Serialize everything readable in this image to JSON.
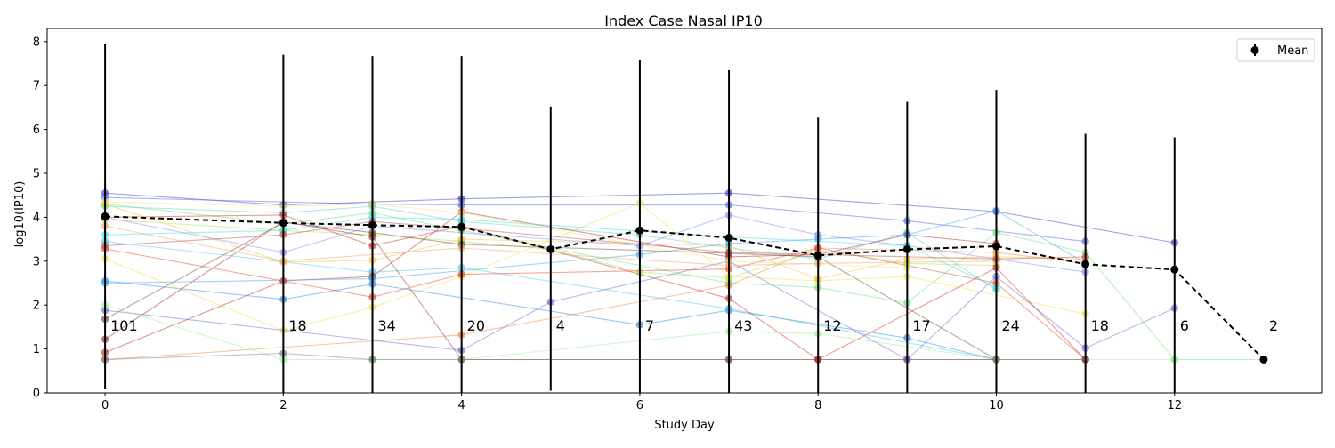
{
  "chart_data": {
    "type": "line",
    "title": "Index Case Nasal IP10",
    "xlabel": "Study Day",
    "ylabel": "log10(IP10)",
    "xlim": [
      -0.65,
      13.65
    ],
    "ylim": [
      0,
      8.3
    ],
    "xticks": [
      0,
      2,
      4,
      6,
      8,
      10,
      12
    ],
    "yticks": [
      0,
      1,
      2,
      3,
      4,
      5,
      6,
      7,
      8
    ],
    "legend": {
      "placement": "top-right",
      "entries": [
        "Mean"
      ]
    },
    "mean_series": {
      "name": "Mean",
      "color": "#000000",
      "points": [
        {
          "x": 0,
          "y": 4.02,
          "ylow": 0.08,
          "yhigh": 7.95,
          "n": "101"
        },
        {
          "x": 2,
          "y": 3.87,
          "ylow": 0.0,
          "yhigh": 7.7,
          "n": "18"
        },
        {
          "x": 3,
          "y": 3.82,
          "ylow": 0.0,
          "yhigh": 7.67,
          "n": "34"
        },
        {
          "x": 4,
          "y": 3.78,
          "ylow": 0.0,
          "yhigh": 7.67,
          "n": "20"
        },
        {
          "x": 5,
          "y": 3.27,
          "ylow": 0.05,
          "yhigh": 6.52,
          "n": "4"
        },
        {
          "x": 6,
          "y": 3.7,
          "ylow": 0.0,
          "yhigh": 7.58,
          "n": "7"
        },
        {
          "x": 7,
          "y": 3.53,
          "ylow": 0.0,
          "yhigh": 7.35,
          "n": "43"
        },
        {
          "x": 8,
          "y": 3.13,
          "ylow": 0.0,
          "yhigh": 6.27,
          "n": "12"
        },
        {
          "x": 9,
          "y": 3.27,
          "ylow": 0.0,
          "yhigh": 6.63,
          "n": "17"
        },
        {
          "x": 10,
          "y": 3.34,
          "ylow": 0.0,
          "yhigh": 6.9,
          "n": "24"
        },
        {
          "x": 11,
          "y": 2.93,
          "ylow": 0.0,
          "yhigh": 5.9,
          "n": "18"
        },
        {
          "x": 12,
          "y": 2.81,
          "ylow": 0.0,
          "yhigh": 5.82,
          "n": "6"
        },
        {
          "x": 13,
          "y": 0.76,
          "ylow": 0.76,
          "yhigh": 0.76,
          "n": "2"
        }
      ]
    },
    "subject_series": [
      {
        "color": "#3030c8",
        "points": [
          [
            0,
            4.55
          ],
          [
            2,
            4.28
          ],
          [
            4,
            4.42
          ],
          [
            7,
            4.55
          ],
          [
            10,
            4.13
          ],
          [
            12,
            3.42
          ]
        ]
      },
      {
        "color": "#4060e0",
        "points": [
          [
            0,
            4.45
          ],
          [
            3,
            4.3
          ],
          [
            4,
            4.28
          ],
          [
            7,
            4.28
          ],
          [
            9,
            3.92
          ],
          [
            11,
            3.45
          ]
        ]
      },
      {
        "color": "#2080e0",
        "points": [
          [
            0,
            2.55
          ],
          [
            2,
            2.13
          ],
          [
            3,
            2.48
          ],
          [
            6,
            1.55
          ],
          [
            7,
            1.88
          ],
          [
            9,
            1.25
          ],
          [
            10,
            0.76
          ]
        ]
      },
      {
        "color": "#40c0e0",
        "points": [
          [
            0,
            3.45
          ],
          [
            3,
            2.75
          ],
          [
            4,
            2.85
          ],
          [
            7,
            1.92
          ],
          [
            10,
            0.76
          ]
        ]
      },
      {
        "color": "#50d0c0",
        "points": [
          [
            0,
            4.25
          ],
          [
            2,
            4.1
          ],
          [
            3,
            4.25
          ],
          [
            4,
            3.9
          ],
          [
            6,
            3.6
          ],
          [
            7,
            3.3
          ],
          [
            8,
            3.05
          ],
          [
            9,
            3.65
          ],
          [
            10,
            2.35
          ]
        ]
      },
      {
        "color": "#60e070",
        "points": [
          [
            0,
            4.3
          ],
          [
            2,
            3.85
          ],
          [
            3,
            4.1
          ],
          [
            4,
            3.7
          ],
          [
            7,
            2.5
          ],
          [
            8,
            2.4
          ],
          [
            9,
            2.05
          ],
          [
            10,
            3.65
          ],
          [
            11,
            3.2
          ],
          [
            12,
            0.76
          ],
          [
            13,
            0.76
          ]
        ]
      },
      {
        "color": "#a0e040",
        "points": [
          [
            0,
            3.95
          ],
          [
            2,
            3.7
          ],
          [
            3,
            3.6
          ],
          [
            4,
            3.45
          ],
          [
            5,
            3.27
          ],
          [
            6,
            2.75
          ],
          [
            7,
            2.62
          ],
          [
            8,
            3.25
          ],
          [
            9,
            2.95
          ],
          [
            10,
            2.9
          ]
        ]
      },
      {
        "color": "#e8e040",
        "points": [
          [
            0,
            3.05
          ],
          [
            2,
            1.42
          ],
          [
            3,
            1.95
          ],
          [
            4,
            2.65
          ],
          [
            6,
            4.32
          ],
          [
            7,
            2.65
          ],
          [
            8,
            2.55
          ],
          [
            9,
            2.65
          ],
          [
            11,
            1.8
          ]
        ]
      },
      {
        "color": "#f0c030",
        "points": [
          [
            0,
            4.3
          ],
          [
            2,
            2.98
          ],
          [
            3,
            3.02
          ],
          [
            4,
            3.5
          ],
          [
            7,
            3.35
          ],
          [
            8,
            2.6
          ],
          [
            9,
            3.05
          ],
          [
            10,
            3.1
          ],
          [
            11,
            3.05
          ]
        ]
      },
      {
        "color": "#f08030",
        "points": [
          [
            0,
            0.76
          ],
          [
            4,
            1.32
          ],
          [
            7,
            2.45
          ],
          [
            8,
            3.3
          ],
          [
            10,
            3.2
          ],
          [
            11,
            2.95
          ]
        ]
      },
      {
        "color": "#e04020",
        "points": [
          [
            0,
            3.28
          ],
          [
            3,
            2.18
          ],
          [
            4,
            2.7
          ],
          [
            7,
            2.82
          ],
          [
            8,
            3.3
          ],
          [
            10,
            2.5
          ],
          [
            11,
            0.76
          ]
        ]
      },
      {
        "color": "#d02020",
        "points": [
          [
            0,
            4.0
          ],
          [
            2,
            4.05
          ],
          [
            3,
            3.35
          ],
          [
            4,
            3.8
          ],
          [
            7,
            2.15
          ],
          [
            8,
            0.76
          ],
          [
            10,
            2.85
          ],
          [
            11,
            0.76
          ]
        ]
      },
      {
        "color": "#b02020",
        "points": [
          [
            0,
            0.92
          ],
          [
            2,
            2.55
          ],
          [
            3,
            2.65
          ],
          [
            4,
            4.12
          ],
          [
            7,
            3.1
          ],
          [
            8,
            3.15
          ],
          [
            9,
            3.6
          ],
          [
            10,
            3.4
          ]
        ]
      },
      {
        "color": "#902020",
        "points": [
          [
            0,
            1.22
          ],
          [
            2,
            3.9
          ],
          [
            3,
            3.55
          ],
          [
            4,
            0.76
          ],
          [
            7,
            0.76
          ],
          [
            8,
            0.76
          ],
          [
            9,
            0.76
          ],
          [
            10,
            0.76
          ],
          [
            11,
            0.76
          ]
        ]
      },
      {
        "color": "#604030",
        "points": [
          [
            0,
            1.68
          ],
          [
            2,
            3.88
          ],
          [
            3,
            3.65
          ],
          [
            4,
            3.38
          ],
          [
            7,
            3.18
          ],
          [
            8,
            3.1
          ],
          [
            10,
            0.76
          ]
        ]
      },
      {
        "color": "#6060d0",
        "points": [
          [
            0,
            1.88
          ],
          [
            4,
            0.97
          ],
          [
            5,
            2.07
          ],
          [
            7,
            3.0
          ],
          [
            9,
            0.76
          ],
          [
            10,
            2.65
          ],
          [
            11,
            1.02
          ],
          [
            12,
            1.93
          ]
        ]
      },
      {
        "color": "#8080f0",
        "points": [
          [
            0,
            4.0
          ],
          [
            2,
            3.2
          ],
          [
            3,
            3.8
          ],
          [
            6,
            3.35
          ],
          [
            7,
            4.05
          ],
          [
            8,
            3.6
          ],
          [
            9,
            3.35
          ],
          [
            11,
            2.75
          ]
        ]
      },
      {
        "color": "#30a0f0",
        "points": [
          [
            0,
            2.5
          ],
          [
            3,
            2.6
          ],
          [
            6,
            3.15
          ],
          [
            7,
            3.4
          ],
          [
            8,
            3.5
          ],
          [
            9,
            3.6
          ],
          [
            10,
            4.15
          ],
          [
            11,
            2.95
          ]
        ]
      },
      {
        "color": "#30e0e0",
        "points": [
          [
            0,
            3.6
          ],
          [
            2,
            3.7
          ],
          [
            3,
            4.0
          ],
          [
            4,
            3.95
          ],
          [
            7,
            3.55
          ],
          [
            9,
            3.35
          ],
          [
            10,
            2.4
          ]
        ]
      },
      {
        "color": "#90f090",
        "points": [
          [
            0,
            2.0
          ],
          [
            2,
            0.76
          ],
          [
            3,
            0.76
          ],
          [
            4,
            0.76
          ],
          [
            7,
            1.4
          ],
          [
            8,
            1.35
          ],
          [
            10,
            0.76
          ],
          [
            12,
            0.76
          ]
        ]
      },
      {
        "color": "#f0e070",
        "points": [
          [
            0,
            4.35
          ],
          [
            2,
            4.25
          ],
          [
            3,
            4.3
          ],
          [
            4,
            4.1
          ],
          [
            7,
            3.0
          ],
          [
            9,
            2.85
          ]
        ]
      },
      {
        "color": "#f0a060",
        "points": [
          [
            0,
            3.8
          ],
          [
            2,
            3.0
          ],
          [
            4,
            3.3
          ],
          [
            7,
            2.9
          ],
          [
            8,
            2.95
          ],
          [
            10,
            3.0
          ]
        ]
      },
      {
        "color": "#c04040",
        "points": [
          [
            0,
            3.35
          ],
          [
            2,
            3.6
          ],
          [
            3,
            3.9
          ],
          [
            4,
            3.75
          ],
          [
            7,
            3.2
          ],
          [
            10,
            3.05
          ],
          [
            11,
            3.1
          ]
        ]
      },
      {
        "color": "#707070",
        "points": [
          [
            0,
            0.76
          ],
          [
            2,
            0.9
          ],
          [
            3,
            0.76
          ],
          [
            4,
            0.76
          ],
          [
            7,
            0.76
          ],
          [
            10,
            0.76
          ],
          [
            11,
            0.76
          ]
        ]
      }
    ]
  }
}
